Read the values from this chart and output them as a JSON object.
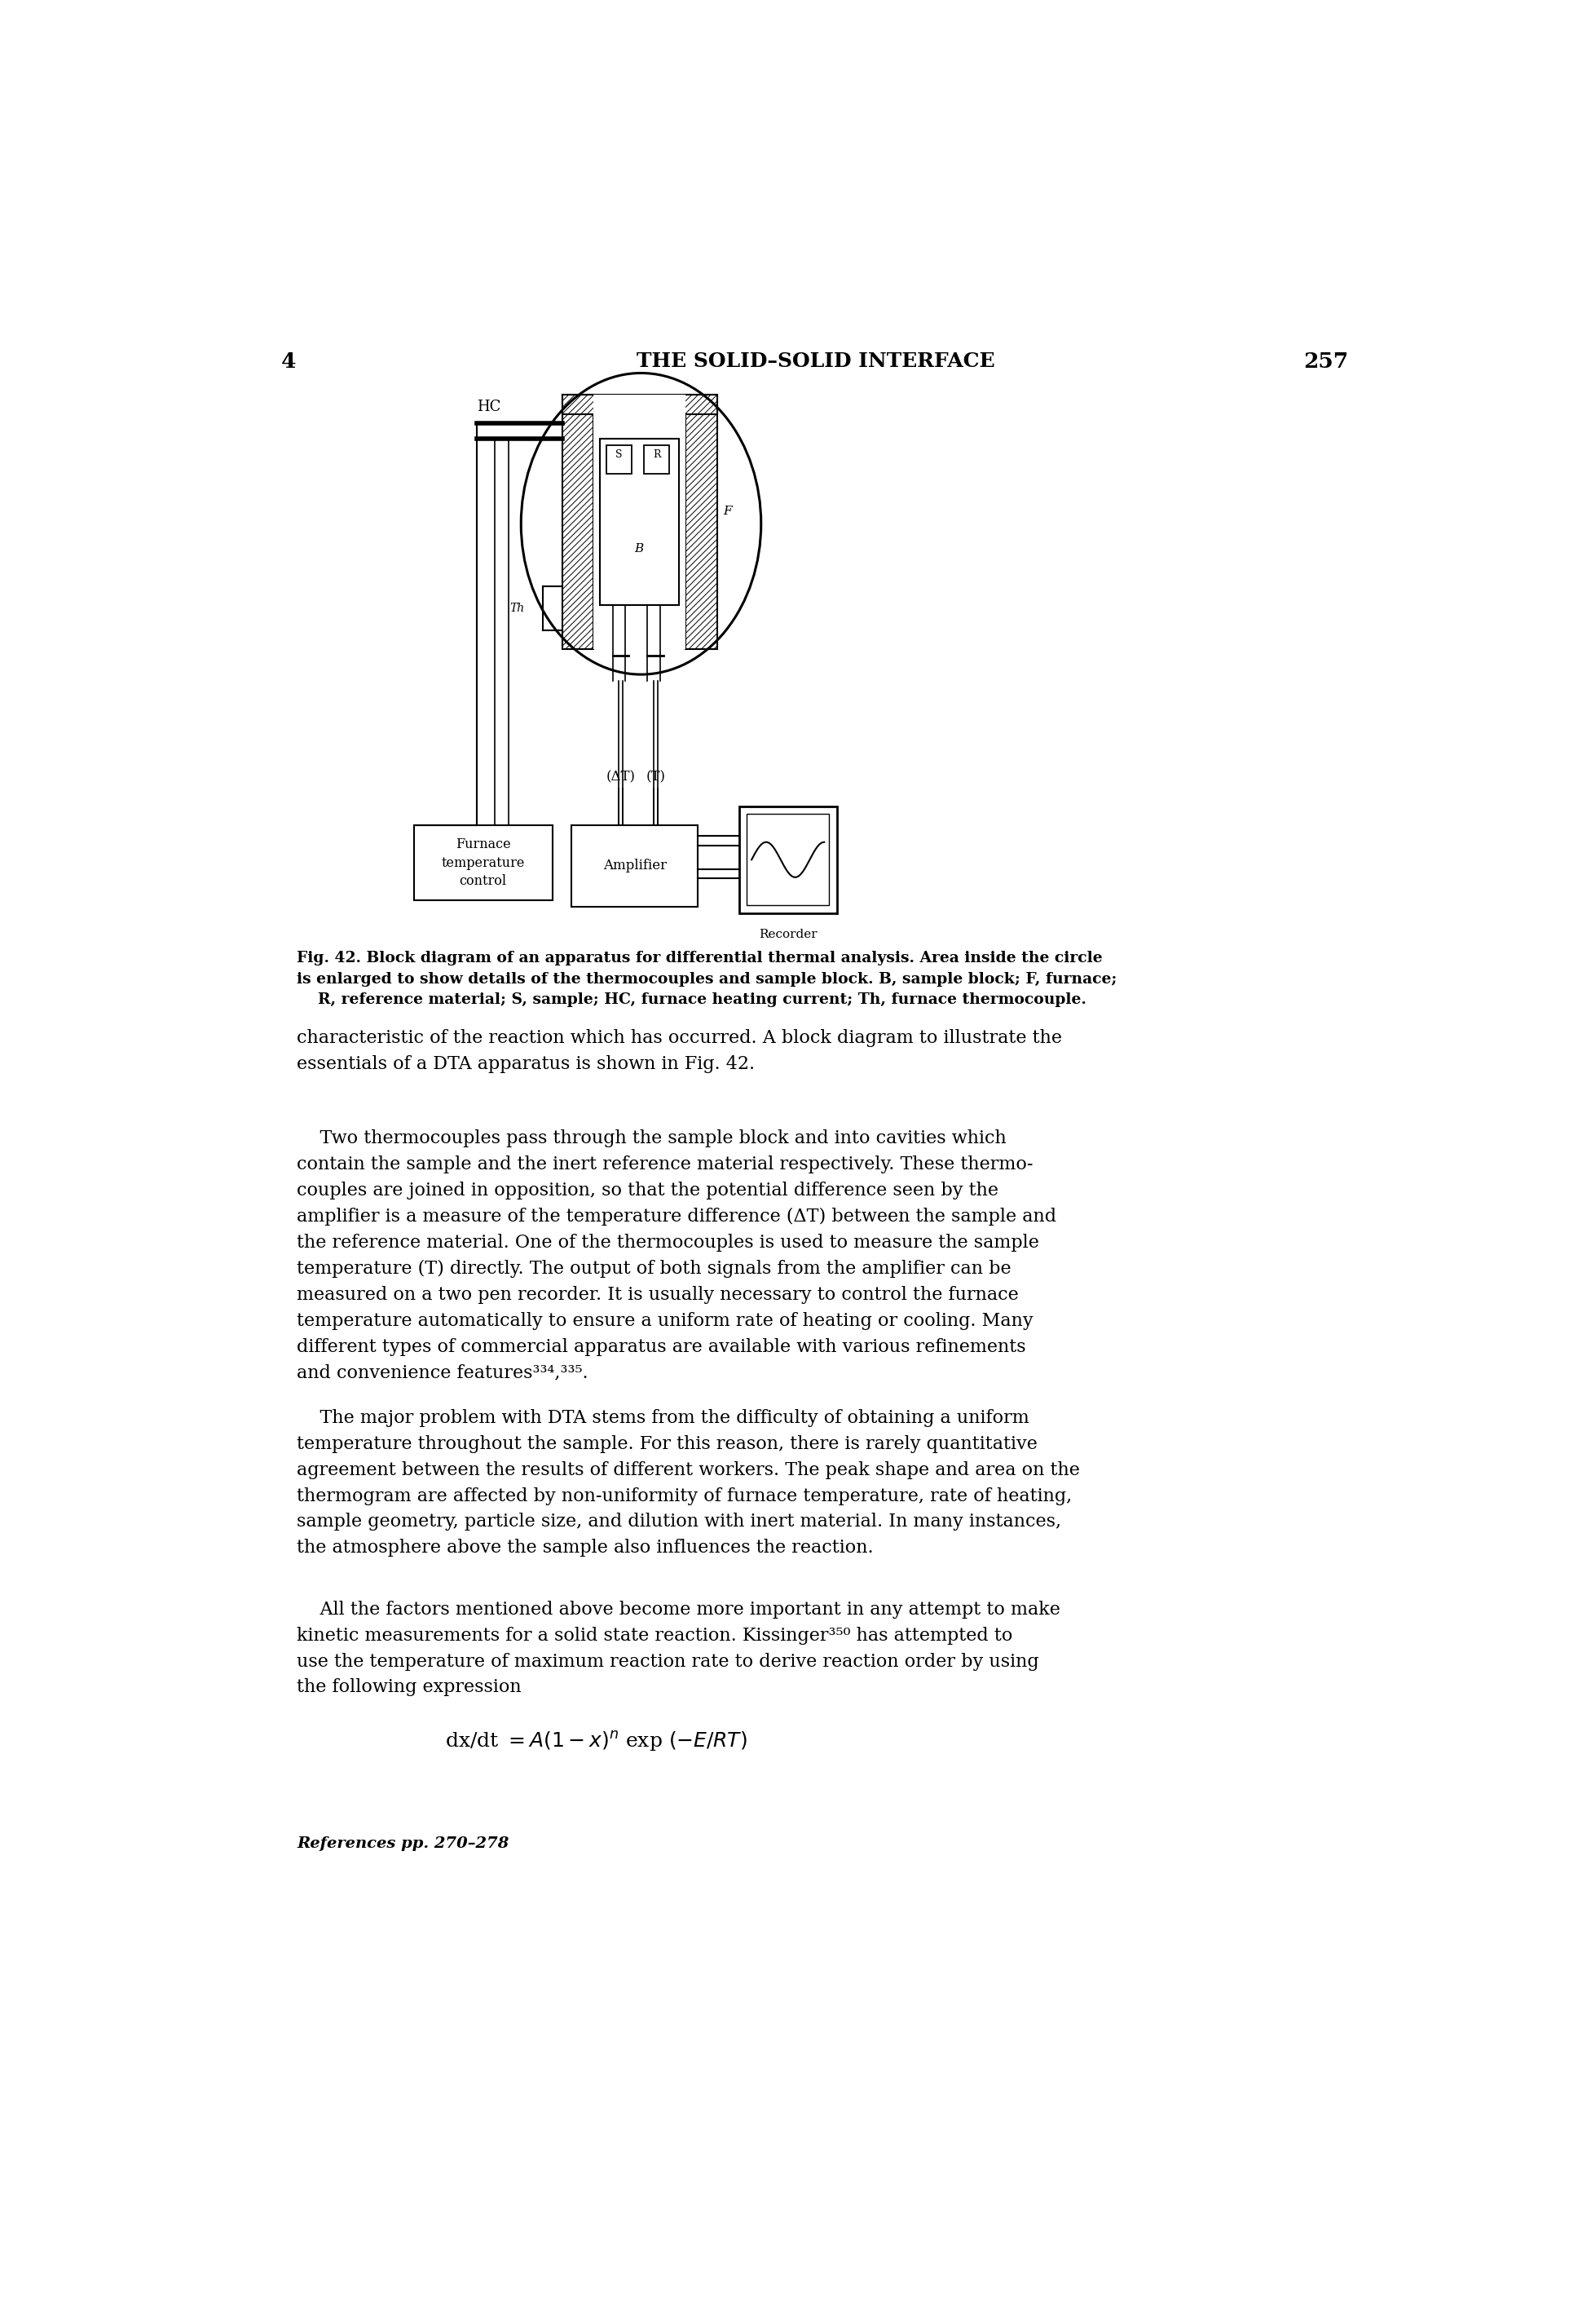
{
  "page_number_left": "4",
  "page_number_right": "257",
  "header_title": "THE SOLID–SOLID INTERFACE",
  "fig_caption_bold": "Fig. 42. Block diagram of an apparatus for differential thermal analysis. Area inside the circle\nis enlarged to show details of the thermocouples and sample block. B, sample block; F, furnace;\n    R, reference material; S, sample; HC, furnace heating current; Th, furnace thermocouple.",
  "body_text_1": "characteristic of the reaction which has occurred. A block diagram to illustrate the\nessentials of a DTA apparatus is shown in Fig. 42.",
  "body_text_2": "    Two thermocouples pass through the sample block and into cavities which\ncontain the sample and the inert reference material respectively. These thermo-\ncouples are joined in opposition, so that the potential difference seen by the\namplifier is a measure of the temperature difference (ΔT) between the sample and\nthe reference material. One of the thermocouples is used to measure the sample\ntemperature (T) directly. The output of both signals from the amplifier can be\nmeasured on a two pen recorder. It is usually necessary to control the furnace\ntemperature automatically to ensure a uniform rate of heating or cooling. Many\ndifferent types of commercial apparatus are available with various refinements\nand convenience features³³⁴,³³⁵.",
  "body_text_3": "    The major problem with DTA stems from the difficulty of obtaining a uniform\ntemperature throughout the sample. For this reason, there is rarely quantitative\nagreement between the results of different workers. The peak shape and area on the\nthermogram are affected by non-uniformity of furnace temperature, rate of heating,\nsample geometry, particle size, and dilution with inert material. In many instances,\nthe atmosphere above the sample also influences the reaction.",
  "body_text_4": "    All the factors mentioned above become more important in any attempt to make\nkinetic measurements for a solid state reaction. Kissinger³⁵⁰ has attempted to\nuse the temperature of maximum reaction rate to derive reaction order by using\nthe following expression",
  "references_text": "References pp. 270–278",
  "background_color": "#ffffff",
  "text_color": "#000000"
}
